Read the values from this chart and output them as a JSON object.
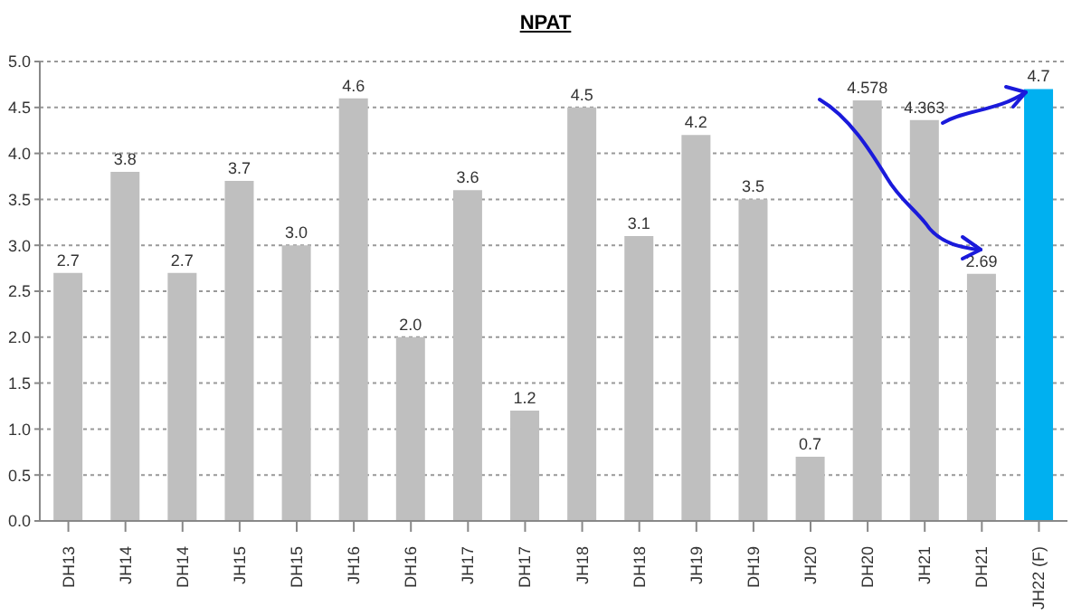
{
  "chart_data": {
    "type": "bar",
    "title": "NPAT",
    "categories": [
      "DH13",
      "JH14",
      "DH14",
      "JH15",
      "DH15",
      "JH16",
      "DH16",
      "JH17",
      "DH17",
      "JH18",
      "DH18",
      "JH19",
      "DH19",
      "JH20",
      "DH20",
      "JH21",
      "DH21",
      "JH22 (F)"
    ],
    "values": [
      2.7,
      3.8,
      2.7,
      3.7,
      3.0,
      4.6,
      2.0,
      3.6,
      1.2,
      4.5,
      3.1,
      4.2,
      3.5,
      0.7,
      4.578,
      4.363,
      2.69,
      4.7
    ],
    "value_labels": [
      "2.7",
      "3.8",
      "2.7",
      "3.7",
      "3.0",
      "4.6",
      "2.0",
      "3.6",
      "1.2",
      "4.5",
      "3.1",
      "4.2",
      "3.5",
      "0.7",
      "4.578",
      "4.363",
      "2.69",
      "4.7"
    ],
    "colors": [
      "#bfbfbf",
      "#bfbfbf",
      "#bfbfbf",
      "#bfbfbf",
      "#bfbfbf",
      "#bfbfbf",
      "#bfbfbf",
      "#bfbfbf",
      "#bfbfbf",
      "#bfbfbf",
      "#bfbfbf",
      "#bfbfbf",
      "#bfbfbf",
      "#bfbfbf",
      "#bfbfbf",
      "#bfbfbf",
      "#bfbfbf",
      "#00b0f0"
    ],
    "ylim": [
      0,
      5
    ],
    "yticks": [
      {
        "value": 0,
        "label": "0.0"
      },
      {
        "value": 0.5,
        "label": "0.5"
      },
      {
        "value": 1,
        "label": "1.0"
      },
      {
        "value": 1.5,
        "label": "1.5"
      },
      {
        "value": 2,
        "label": "2.0"
      },
      {
        "value": 2.5,
        "label": "2.5"
      },
      {
        "value": 3,
        "label": "3.0"
      },
      {
        "value": 3.5,
        "label": "3.5"
      },
      {
        "value": 4,
        "label": "4.0"
      },
      {
        "value": 4.5,
        "label": "4.5"
      },
      {
        "value": 5,
        "label": "5.0"
      }
    ],
    "grid": "y"
  }
}
